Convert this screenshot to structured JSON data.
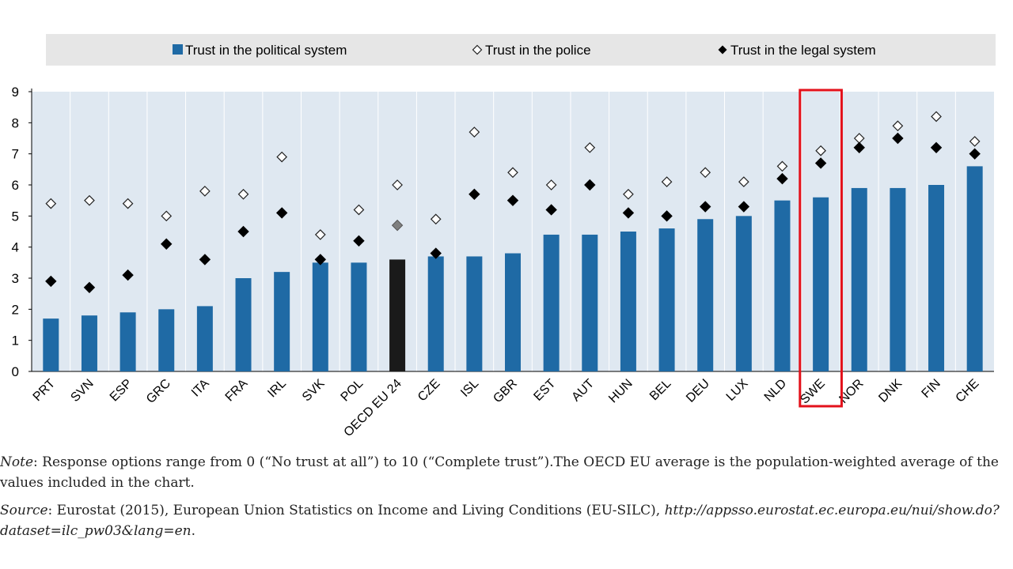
{
  "chart_data": {
    "type": "bar",
    "categories": [
      "PRT",
      "SVN",
      "ESP",
      "GRC",
      "ITA",
      "FRA",
      "IRL",
      "SVK",
      "POL",
      "OECD EU 24",
      "CZE",
      "ISL",
      "GBR",
      "EST",
      "AUT",
      "HUN",
      "BEL",
      "DEU",
      "LUX",
      "NLD",
      "SWE",
      "NOR",
      "DNK",
      "FIN",
      "CHE"
    ],
    "series": [
      {
        "name": "Trust in the political system",
        "kind": "bar",
        "values": [
          1.7,
          1.8,
          1.9,
          2.0,
          2.1,
          3.0,
          3.2,
          3.5,
          3.5,
          3.6,
          3.7,
          3.7,
          3.8,
          4.4,
          4.4,
          4.5,
          4.6,
          4.9,
          5.0,
          5.5,
          5.6,
          5.9,
          5.9,
          6.0,
          6.6
        ]
      },
      {
        "name": "Trust in the police",
        "kind": "hollow-diamond",
        "values": [
          5.4,
          5.5,
          5.4,
          5.0,
          5.8,
          5.7,
          6.9,
          4.4,
          5.2,
          6.0,
          4.9,
          7.7,
          6.4,
          6.0,
          7.2,
          5.7,
          6.1,
          6.4,
          6.1,
          6.6,
          7.1,
          7.5,
          7.9,
          8.2,
          7.4
        ]
      },
      {
        "name": "Trust in the legal system",
        "kind": "filled-diamond",
        "values": [
          2.9,
          2.7,
          3.1,
          4.1,
          3.6,
          4.5,
          5.1,
          3.6,
          4.2,
          4.7,
          3.8,
          5.7,
          5.5,
          5.2,
          6.0,
          5.1,
          5.0,
          5.3,
          5.3,
          6.2,
          6.7,
          7.2,
          7.5,
          7.2,
          7.0
        ]
      }
    ],
    "highlight_average": "OECD EU 24",
    "highlight_box": "SWE",
    "ylim": [
      0,
      9
    ],
    "yticks": [
      "0",
      "1",
      "2",
      "3",
      "4",
      "5",
      "6",
      "7",
      "8",
      "9"
    ],
    "legend_position": "top",
    "grid": "vertical separators",
    "title": "",
    "xlabel": "",
    "ylabel": ""
  },
  "colors": {
    "bar": "#1f6aa5",
    "average_bar": "#1a1a1a",
    "average_marker": "#7f7f7f",
    "plot_bg": "#dfe8f1",
    "legend_bg": "#e6e6e6",
    "highlight_box": "#e3111b"
  },
  "notes": {
    "note_label": "Note",
    "note_text": ": Response options range from 0 (“No trust at all”) to 10 (“Complete trust”).The OECD EU average is the population-weighted average of the values included in the chart.",
    "source_label": "Source",
    "source_text": ": Eurostat (2015), European Union Statistics on Income and Living Conditions (EU-SILC), ",
    "source_url": "http://appsso.eurostat.ec.europa.eu/nui/show.do?dataset=ilc_pw03&lang=en",
    "source_end": "."
  }
}
